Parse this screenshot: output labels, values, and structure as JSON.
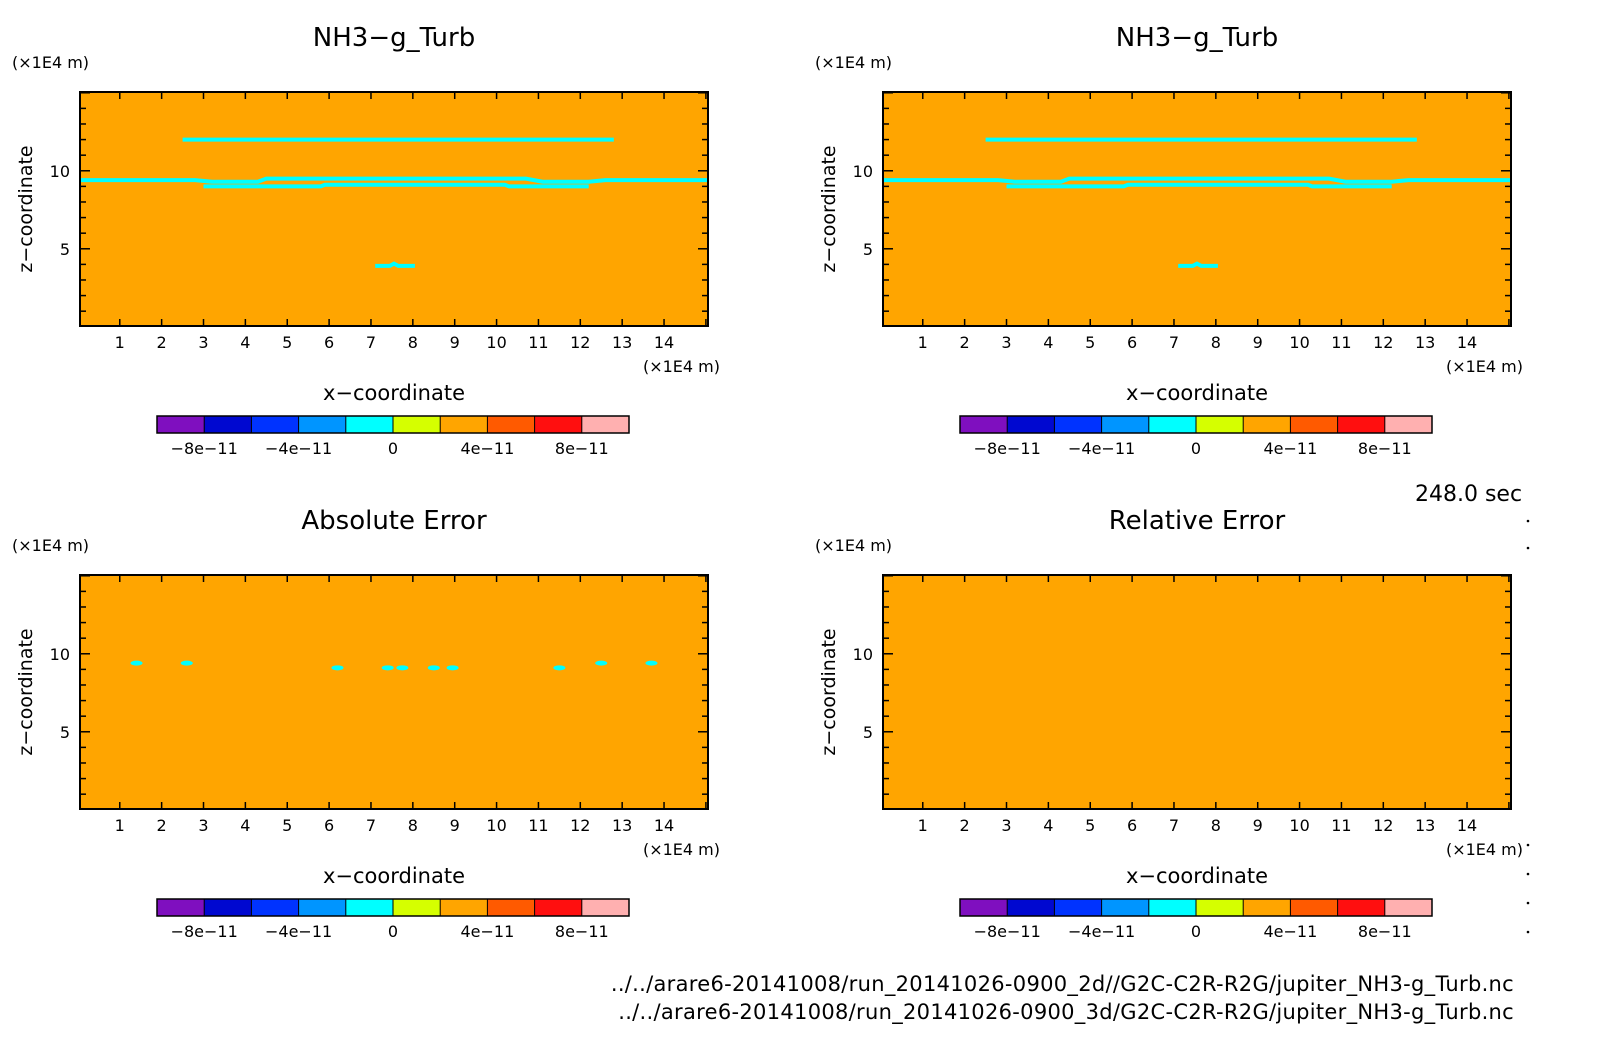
{
  "time_label": "248.0 sec",
  "footer": {
    "path_2d": "../../arare6-20141008/run_20141026-0900_2d//G2C-C2R-R2G/jupiter_NH3-g_Turb.nc",
    "path_3d": "../../arare6-20141008/run_20141026-0900_3d/G2C-C2R-R2G/jupiter_NH3-g_Turb.nc"
  },
  "colorbar": {
    "colors": [
      "#7f0fbf",
      "#0008d0",
      "#0033ff",
      "#0095ff",
      "#00ffff",
      "#d5ff00",
      "#ffa500",
      "#ff5a00",
      "#ff0f0f",
      "#ffb0b0"
    ],
    "range": [
      -1e-10,
      1e-10
    ],
    "tick_values": [
      -8e-11,
      -4e-11,
      0,
      4e-11,
      8e-11
    ],
    "tick_labels": [
      "−8e−11",
      "−4e−11",
      "0",
      "4e−11",
      "8e−11"
    ]
  },
  "chart_data": [
    {
      "type": "heatmap",
      "title": "NH3−g_Turb",
      "xlabel": "x−coordinate",
      "ylabel": "z−coordinate",
      "x_unit": "(×1E4 m)",
      "y_unit": "(×1E4 m)",
      "xlim": [
        0.05,
        15.05
      ],
      "ylim": [
        0.05,
        15.05
      ],
      "xticks": [
        1,
        2,
        3,
        4,
        5,
        6,
        7,
        8,
        9,
        10,
        11,
        12,
        13,
        14
      ],
      "yticks": [
        5,
        10
      ],
      "background_value": 2e-11,
      "contours": [
        {
          "value": 0,
          "points": [
            [
              2.5,
              12.0
            ],
            [
              12.8,
              12.0
            ]
          ]
        },
        {
          "value": 0,
          "points": [
            [
              0.05,
              9.4
            ],
            [
              2.8,
              9.4
            ],
            [
              3.2,
              9.3
            ],
            [
              4.3,
              9.3
            ],
            [
              4.5,
              9.5
            ],
            [
              10.7,
              9.5
            ],
            [
              11.1,
              9.3
            ],
            [
              12.2,
              9.3
            ],
            [
              12.6,
              9.4
            ],
            [
              15.05,
              9.4
            ]
          ]
        },
        {
          "value": 0,
          "points": [
            [
              3.0,
              9.0
            ],
            [
              5.8,
              9.0
            ],
            [
              5.9,
              9.1
            ],
            [
              10.2,
              9.1
            ],
            [
              10.3,
              9.0
            ],
            [
              12.2,
              9.0
            ]
          ]
        },
        {
          "value": 0,
          "points": [
            [
              7.1,
              3.9
            ],
            [
              7.45,
              3.9
            ],
            [
              7.55,
              4.05
            ],
            [
              7.65,
              3.9
            ],
            [
              8.05,
              3.9
            ]
          ]
        }
      ]
    },
    {
      "type": "heatmap",
      "title": "NH3−g_Turb",
      "xlabel": "x−coordinate",
      "ylabel": "z−coordinate",
      "x_unit": "(×1E4 m)",
      "y_unit": "(×1E4 m)",
      "xlim": [
        0.05,
        15.05
      ],
      "ylim": [
        0.05,
        15.05
      ],
      "xticks": [
        1,
        2,
        3,
        4,
        5,
        6,
        7,
        8,
        9,
        10,
        11,
        12,
        13,
        14
      ],
      "yticks": [
        5,
        10
      ],
      "background_value": 2e-11,
      "contours": [
        {
          "value": 0,
          "points": [
            [
              2.5,
              12.0
            ],
            [
              12.8,
              12.0
            ]
          ]
        },
        {
          "value": 0,
          "points": [
            [
              0.05,
              9.4
            ],
            [
              2.8,
              9.4
            ],
            [
              3.2,
              9.3
            ],
            [
              4.3,
              9.3
            ],
            [
              4.5,
              9.5
            ],
            [
              10.7,
              9.5
            ],
            [
              11.1,
              9.3
            ],
            [
              12.2,
              9.3
            ],
            [
              12.6,
              9.4
            ],
            [
              15.05,
              9.4
            ]
          ]
        },
        {
          "value": 0,
          "points": [
            [
              3.0,
              9.0
            ],
            [
              5.8,
              9.0
            ],
            [
              5.9,
              9.1
            ],
            [
              10.2,
              9.1
            ],
            [
              10.3,
              9.0
            ],
            [
              12.2,
              9.0
            ]
          ]
        },
        {
          "value": 0,
          "points": [
            [
              7.1,
              3.9
            ],
            [
              7.45,
              3.9
            ],
            [
              7.55,
              4.05
            ],
            [
              7.65,
              3.9
            ],
            [
              8.05,
              3.9
            ]
          ]
        }
      ]
    },
    {
      "type": "heatmap",
      "title": "Absolute Error",
      "xlabel": "x−coordinate",
      "ylabel": "z−coordinate",
      "x_unit": "(×1E4 m)",
      "y_unit": "(×1E4 m)",
      "xlim": [
        0.05,
        15.05
      ],
      "ylim": [
        0.05,
        15.05
      ],
      "xticks": [
        1,
        2,
        3,
        4,
        5,
        6,
        7,
        8,
        9,
        10,
        11,
        12,
        13,
        14
      ],
      "yticks": [
        5,
        10
      ],
      "background_value": 2e-11,
      "spots": [
        {
          "x": 1.4,
          "y": 9.4
        },
        {
          "x": 2.6,
          "y": 9.4
        },
        {
          "x": 6.2,
          "y": 9.1
        },
        {
          "x": 7.4,
          "y": 9.1
        },
        {
          "x": 7.75,
          "y": 9.1
        },
        {
          "x": 8.5,
          "y": 9.1
        },
        {
          "x": 8.95,
          "y": 9.1
        },
        {
          "x": 11.5,
          "y": 9.1
        },
        {
          "x": 12.5,
          "y": 9.4
        },
        {
          "x": 13.7,
          "y": 9.4
        }
      ]
    },
    {
      "type": "heatmap",
      "title": "Relative Error",
      "xlabel": "x−coordinate",
      "ylabel": "z−coordinate",
      "x_unit": "(×1E4 m)",
      "y_unit": "(×1E4 m)",
      "xlim": [
        0.05,
        15.05
      ],
      "ylim": [
        0.05,
        15.05
      ],
      "xticks": [
        1,
        2,
        3,
        4,
        5,
        6,
        7,
        8,
        9,
        10,
        11,
        12,
        13,
        14
      ],
      "yticks": [
        5,
        10
      ],
      "background_value": 2e-11
    }
  ]
}
